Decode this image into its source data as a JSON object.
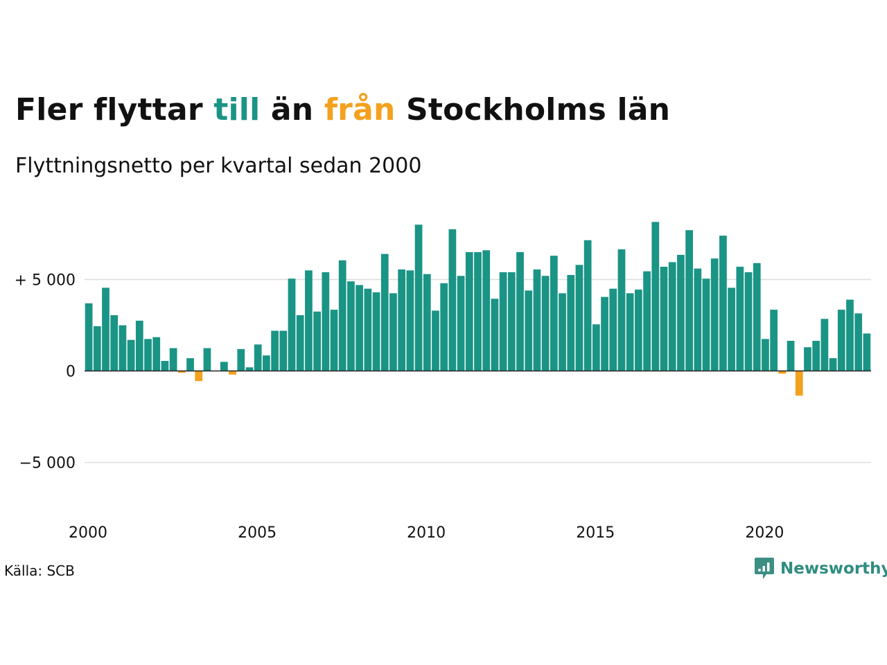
{
  "title": {
    "part1": "Fler flyttar ",
    "part2": "till",
    "part3": " än ",
    "part4": "från",
    "part5": " Stockholms län"
  },
  "subtitle": "Flyttningsnetto per kvartal sedan 2000",
  "source": "Källa: SCB",
  "brand": {
    "name": "Newsworthy",
    "icon": "newsworthy-logo-icon"
  },
  "colors": {
    "positive": "#1a9485",
    "negative": "#f4a11e",
    "title_in": "#1a9485",
    "title_out": "#f4a11e",
    "grid": "#dddddd",
    "baseline": "#222222"
  },
  "chart_data": {
    "type": "bar",
    "title": "Fler flyttar till än från Stockholms län",
    "subtitle": "Flyttningsnetto per kvartal sedan 2000",
    "xlabel": "",
    "ylabel": "",
    "ylim": [
      -8500,
      9300
    ],
    "yticks": [
      -5000,
      0,
      5000
    ],
    "ytick_labels": [
      "−5 000",
      "0",
      "+ 5 000"
    ],
    "xticks": [
      2000,
      2005,
      2010,
      2015,
      2020
    ],
    "xtick_labels": [
      "2000",
      "2005",
      "2010",
      "2015",
      "2020"
    ],
    "grid": true,
    "legend": "none",
    "start_year": 2000,
    "periods_per_year": 4,
    "values": [
      3700,
      2450,
      4550,
      3050,
      2500,
      1700,
      2750,
      1750,
      1850,
      550,
      1250,
      -100,
      700,
      -550,
      1250,
      0,
      500,
      -200,
      1200,
      200,
      1450,
      850,
      2200,
      2200,
      5050,
      3050,
      5500,
      3250,
      5400,
      3350,
      6050,
      4900,
      4700,
      4500,
      4300,
      6400,
      4250,
      5550,
      5500,
      8000,
      5300,
      3300,
      4800,
      7750,
      5200,
      6500,
      6500,
      6600,
      3950,
      5400,
      5400,
      6500,
      4400,
      5550,
      5200,
      6300,
      4250,
      5250,
      5800,
      7150,
      2550,
      4050,
      4500,
      6650,
      4250,
      4450,
      5450,
      8150,
      5700,
      5950,
      6350,
      7700,
      5600,
      5050,
      6150,
      7400,
      4550,
      5700,
      5400,
      5900,
      1750,
      3350,
      -150,
      1650,
      -1350,
      1300,
      1650,
      2850,
      700,
      3350,
      3900,
      3150,
      2050
    ]
  }
}
